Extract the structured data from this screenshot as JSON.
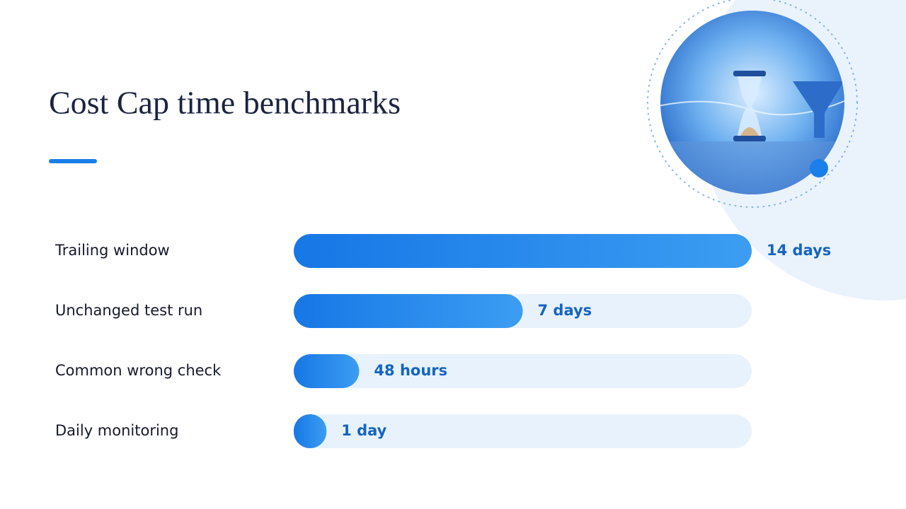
{
  "chart_data": {
    "type": "bar",
    "orientation": "horizontal",
    "title": "Cost Cap time benchmarks",
    "categories": [
      "Trailing window",
      "Unchanged test run",
      "Common wrong check",
      "Daily monitoring"
    ],
    "values": [
      14,
      7,
      2,
      1
    ],
    "value_labels": [
      "14 days",
      "7 days",
      "48 hours",
      "1 day"
    ],
    "color": "#1a7fe8",
    "xlim": [
      0,
      14
    ]
  }
}
